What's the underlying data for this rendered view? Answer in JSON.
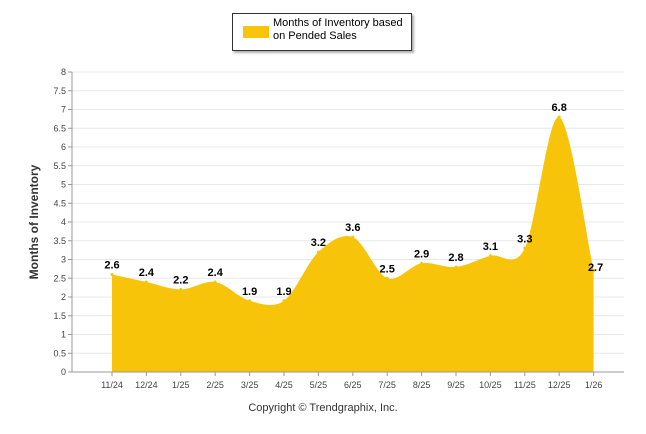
{
  "legend": {
    "label": "Months of Inventory based on Pended Sales"
  },
  "footer": {
    "copyright": "Copyright © Trendgraphix, Inc."
  },
  "colors": {
    "series_fill": "#F8C40A",
    "grid": "#E8E8E8",
    "axis": "#999999"
  },
  "chart_data": {
    "type": "area",
    "title": "",
    "xlabel": "",
    "ylabel": "Months of Inventory",
    "categories": [
      "11/24",
      "12/24",
      "1/25",
      "2/25",
      "3/25",
      "4/25",
      "5/25",
      "6/25",
      "7/25",
      "8/25",
      "9/25",
      "10/25",
      "11/25",
      "12/25",
      "1/26"
    ],
    "series": [
      {
        "name": "Months of Inventory based on Pended Sales",
        "values": [
          2.6,
          2.4,
          2.2,
          2.4,
          1.9,
          1.9,
          3.2,
          3.6,
          2.5,
          2.9,
          2.8,
          3.1,
          3.3,
          6.8,
          2.7
        ],
        "value_labels": [
          "2.6",
          "2.4",
          "2.2",
          "2.4",
          "1.9",
          "1.9",
          "3.2",
          "3.6",
          "2.5",
          "2.9",
          "2.8",
          "3.1",
          "3.3",
          "6.8",
          "2.7"
        ]
      }
    ],
    "ylim": [
      0,
      8
    ],
    "yticks": [
      0,
      0.5,
      1,
      1.5,
      2,
      2.5,
      3,
      3.5,
      4,
      4.5,
      5,
      5.5,
      6,
      6.5,
      7,
      7.5,
      8
    ],
    "ytick_labels": [
      "0",
      "0.5",
      "1",
      "1.5",
      "2",
      "2.5",
      "3",
      "3.5",
      "4",
      "4.5",
      "5",
      "5.5",
      "6",
      "6.5",
      "7",
      "7.5",
      "8"
    ],
    "grid": true,
    "legend_position": "top-center"
  }
}
